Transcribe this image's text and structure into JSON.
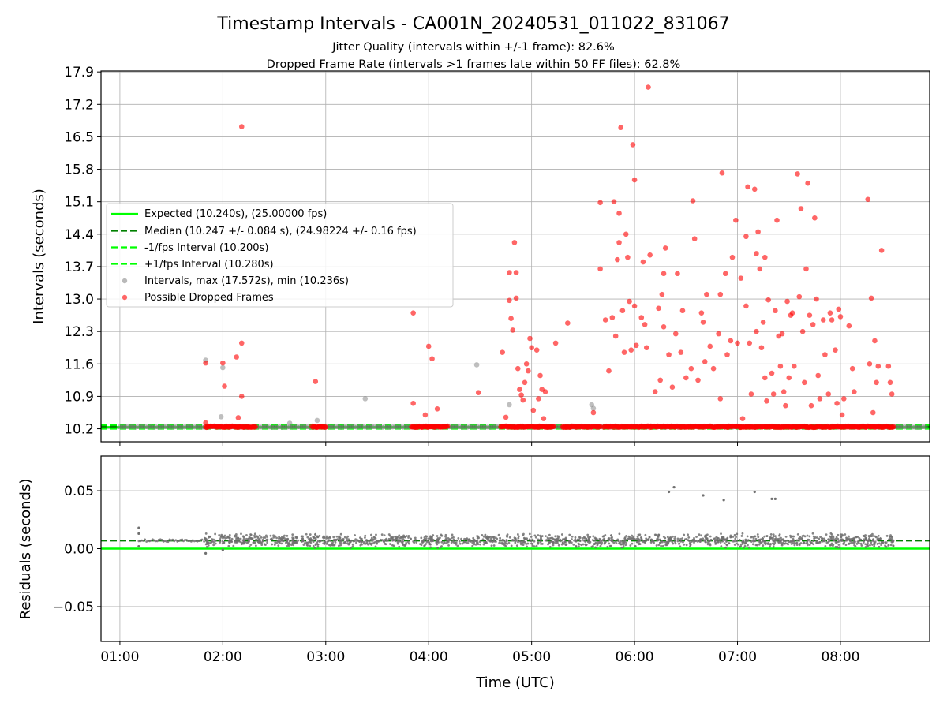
{
  "chart_data": [
    {
      "type": "scatter",
      "title": "Timestamp Intervals - CA001N_20240531_011022_831067",
      "subtitle_1": "Jitter Quality (intervals within +/-1 frame): 82.6%",
      "subtitle_2": "Dropped Frame Rate (intervals >1 frames late within 50 FF files): 62.8%",
      "ylabel": "Intervals (seconds)",
      "ylim": [
        9.92,
        17.92
      ],
      "yticks": [
        "10.2",
        "10.9",
        "11.6",
        "12.3",
        "13.0",
        "13.7",
        "14.4",
        "15.1",
        "15.8",
        "16.5",
        "17.2",
        "17.9"
      ],
      "grid": true,
      "legend_position": "center-left",
      "lines": {
        "expected": {
          "y": 10.24,
          "label": "Expected (10.240s), (25.00000 fps)",
          "color": "#00ff00"
        },
        "median": {
          "y": 10.247,
          "label": "Median (10.247 +/- 0.084 s), (24.98224 +/- 0.16 fps)",
          "color": "#008000"
        },
        "minus_fps": {
          "y": 10.2,
          "label": "-1/fps Interval (10.200s)",
          "color": "#00ff00"
        },
        "plus_fps": {
          "y": 10.28,
          "label": "+1/fps Interval (10.280s)",
          "color": "#00ff00"
        }
      },
      "intervals_series": {
        "label": "Intervals, max (17.572s), min (10.236s)",
        "color": "#808080",
        "points": [
          [
            "01:50",
            11.68
          ],
          [
            "01:59",
            10.46
          ],
          [
            "02:00",
            11.52
          ],
          [
            "02:39",
            10.32
          ],
          [
            "02:55",
            10.38
          ],
          [
            "03:23",
            10.85
          ],
          [
            "04:28",
            11.58
          ],
          [
            "04:47",
            10.72
          ],
          [
            "05:35",
            10.72
          ],
          [
            "05:36",
            10.64
          ]
        ]
      },
      "dropped_series": {
        "label": "Possible Dropped Frames",
        "color": "#ff0000",
        "points": [
          [
            "01:50",
            11.62
          ],
          [
            "01:50",
            10.33
          ],
          [
            "02:00",
            11.62
          ],
          [
            "02:01",
            11.12
          ],
          [
            "02:08",
            11.75
          ],
          [
            "02:09",
            10.44
          ],
          [
            "02:11",
            10.9
          ],
          [
            "02:11",
            16.72
          ],
          [
            "02:11",
            12.05
          ],
          [
            "02:54",
            11.22
          ],
          [
            "03:51",
            12.7
          ],
          [
            "03:51",
            10.75
          ],
          [
            "03:58",
            10.5
          ],
          [
            "04:00",
            11.98
          ],
          [
            "04:02",
            11.71
          ],
          [
            "04:05",
            10.63
          ],
          [
            "04:29",
            10.98
          ],
          [
            "04:43",
            11.85
          ],
          [
            "04:45",
            10.45
          ],
          [
            "04:47",
            12.97
          ],
          [
            "04:47",
            13.57
          ],
          [
            "04:48",
            12.58
          ],
          [
            "04:49",
            12.33
          ],
          [
            "04:50",
            14.22
          ],
          [
            "04:51",
            13.02
          ],
          [
            "04:51",
            13.57
          ],
          [
            "04:52",
            11.5
          ],
          [
            "04:53",
            11.05
          ],
          [
            "04:54",
            10.93
          ],
          [
            "04:55",
            10.82
          ],
          [
            "04:56",
            11.2
          ],
          [
            "04:57",
            11.6
          ],
          [
            "04:58",
            11.45
          ],
          [
            "04:59",
            12.15
          ],
          [
            "05:00",
            11.95
          ],
          [
            "05:01",
            10.6
          ],
          [
            "05:03",
            11.9
          ],
          [
            "05:04",
            10.85
          ],
          [
            "05:05",
            11.35
          ],
          [
            "05:06",
            11.05
          ],
          [
            "05:07",
            10.42
          ],
          [
            "05:08",
            11.0
          ],
          [
            "05:14",
            12.05
          ],
          [
            "05:21",
            12.48
          ],
          [
            "05:36",
            10.55
          ],
          [
            "05:40",
            15.08
          ],
          [
            "05:40",
            13.65
          ],
          [
            "05:43",
            12.55
          ],
          [
            "05:45",
            11.45
          ],
          [
            "05:47",
            12.6
          ],
          [
            "05:48",
            15.1
          ],
          [
            "05:49",
            12.2
          ],
          [
            "05:50",
            13.85
          ],
          [
            "05:51",
            14.85
          ],
          [
            "05:51",
            14.22
          ],
          [
            "05:52",
            16.7
          ],
          [
            "05:53",
            12.75
          ],
          [
            "05:54",
            11.85
          ],
          [
            "05:55",
            14.4
          ],
          [
            "05:56",
            13.9
          ],
          [
            "05:57",
            12.95
          ],
          [
            "05:58",
            11.9
          ],
          [
            "05:59",
            16.33
          ],
          [
            "06:00",
            15.57
          ],
          [
            "06:00",
            12.85
          ],
          [
            "06:01",
            12.0
          ],
          [
            "06:04",
            12.6
          ],
          [
            "06:05",
            13.8
          ],
          [
            "06:06",
            12.45
          ],
          [
            "06:07",
            11.95
          ],
          [
            "06:08",
            17.57
          ],
          [
            "06:09",
            13.95
          ],
          [
            "06:12",
            11.0
          ],
          [
            "06:14",
            12.8
          ],
          [
            "06:15",
            11.25
          ],
          [
            "06:16",
            13.1
          ],
          [
            "06:17",
            13.55
          ],
          [
            "06:17",
            12.4
          ],
          [
            "06:18",
            14.1
          ],
          [
            "06:20",
            11.8
          ],
          [
            "06:22",
            11.1
          ],
          [
            "06:24",
            12.25
          ],
          [
            "06:25",
            13.55
          ],
          [
            "06:27",
            11.85
          ],
          [
            "06:28",
            12.75
          ],
          [
            "06:30",
            11.3
          ],
          [
            "06:33",
            11.5
          ],
          [
            "06:34",
            15.12
          ],
          [
            "06:35",
            14.3
          ],
          [
            "06:37",
            11.25
          ],
          [
            "06:39",
            12.7
          ],
          [
            "06:40",
            12.5
          ],
          [
            "06:41",
            11.65
          ],
          [
            "06:42",
            13.1
          ],
          [
            "06:44",
            11.98
          ],
          [
            "06:46",
            11.5
          ],
          [
            "06:49",
            12.25
          ],
          [
            "06:50",
            10.85
          ],
          [
            "06:50",
            13.1
          ],
          [
            "06:51",
            15.72
          ],
          [
            "06:53",
            13.55
          ],
          [
            "06:54",
            11.8
          ],
          [
            "06:56",
            12.1
          ],
          [
            "06:57",
            13.9
          ],
          [
            "06:59",
            14.7
          ],
          [
            "07:00",
            12.05
          ],
          [
            "07:02",
            13.45
          ],
          [
            "07:03",
            10.42
          ],
          [
            "07:05",
            12.85
          ],
          [
            "07:05",
            14.35
          ],
          [
            "07:06",
            15.42
          ],
          [
            "07:07",
            12.05
          ],
          [
            "07:08",
            10.95
          ],
          [
            "07:10",
            15.37
          ],
          [
            "07:11",
            13.98
          ],
          [
            "07:11",
            12.3
          ],
          [
            "07:12",
            14.45
          ],
          [
            "07:13",
            13.65
          ],
          [
            "07:14",
            11.95
          ],
          [
            "07:15",
            12.5
          ],
          [
            "07:16",
            13.9
          ],
          [
            "07:16",
            11.3
          ],
          [
            "07:17",
            10.8
          ],
          [
            "07:18",
            12.98
          ],
          [
            "07:20",
            11.4
          ],
          [
            "07:21",
            10.95
          ],
          [
            "07:22",
            12.75
          ],
          [
            "07:23",
            14.7
          ],
          [
            "07:24",
            12.2
          ],
          [
            "07:25",
            11.55
          ],
          [
            "07:26",
            12.25
          ],
          [
            "07:27",
            11.0
          ],
          [
            "07:28",
            10.7
          ],
          [
            "07:29",
            12.95
          ],
          [
            "07:30",
            11.3
          ],
          [
            "07:31",
            12.65
          ],
          [
            "07:32",
            12.7
          ],
          [
            "07:33",
            11.55
          ],
          [
            "07:35",
            15.7
          ],
          [
            "07:36",
            13.05
          ],
          [
            "07:37",
            14.95
          ],
          [
            "07:38",
            12.3
          ],
          [
            "07:39",
            11.2
          ],
          [
            "07:40",
            13.65
          ],
          [
            "07:41",
            15.5
          ],
          [
            "07:42",
            12.65
          ],
          [
            "07:43",
            10.7
          ],
          [
            "07:44",
            12.45
          ],
          [
            "07:45",
            14.75
          ],
          [
            "07:46",
            13.0
          ],
          [
            "07:47",
            11.35
          ],
          [
            "07:48",
            10.85
          ],
          [
            "07:50",
            12.55
          ],
          [
            "07:51",
            11.8
          ],
          [
            "07:53",
            10.95
          ],
          [
            "07:54",
            12.7
          ],
          [
            "07:55",
            12.55
          ],
          [
            "07:57",
            11.9
          ],
          [
            "07:58",
            10.75
          ],
          [
            "07:59",
            12.78
          ],
          [
            "08:00",
            12.62
          ],
          [
            "08:01",
            10.5
          ],
          [
            "08:02",
            10.85
          ],
          [
            "08:05",
            12.42
          ],
          [
            "08:07",
            11.5
          ],
          [
            "08:08",
            11.0
          ],
          [
            "08:16",
            15.15
          ],
          [
            "08:17",
            11.6
          ],
          [
            "08:18",
            13.02
          ],
          [
            "08:19",
            10.55
          ],
          [
            "08:20",
            12.1
          ],
          [
            "08:21",
            11.2
          ],
          [
            "08:22",
            11.55
          ],
          [
            "08:24",
            14.05
          ],
          [
            "08:28",
            11.55
          ],
          [
            "08:29",
            11.2
          ],
          [
            "08:30",
            10.95
          ]
        ],
        "baseline_segments": [
          [
            "01:50",
            "02:19"
          ],
          [
            "02:52",
            "03:00"
          ],
          [
            "03:50",
            "04:11"
          ],
          [
            "04:42",
            "05:13"
          ],
          [
            "05:18",
            "05:40"
          ],
          [
            "05:42",
            "06:50"
          ],
          [
            "06:51",
            "07:12"
          ],
          [
            "07:13",
            "08:31"
          ]
        ]
      }
    },
    {
      "type": "scatter",
      "ylabel": "Residuals (seconds)",
      "xlabel": "Time (UTC)",
      "ylim": [
        -0.08,
        0.08
      ],
      "yticks": [
        "−0.05",
        "0.00",
        "0.05"
      ],
      "xticks": [
        "01:00",
        "02:00",
        "03:00",
        "04:00",
        "05:00",
        "06:00",
        "07:00",
        "08:00"
      ],
      "xlim": [
        "00:49",
        "08:52"
      ],
      "grid": true,
      "zero_line": {
        "y": 0.0,
        "color": "#00ff00"
      },
      "median_line": {
        "y": 0.007,
        "color": "#008000"
      },
      "points_color": "#707070",
      "outliers": [
        [
          "01:11",
          0.018
        ],
        [
          "01:11",
          0.013
        ],
        [
          "01:11",
          0.002
        ],
        [
          "01:50",
          -0.004
        ],
        [
          "02:00",
          -0.001
        ],
        [
          "06:20",
          0.049
        ],
        [
          "06:23",
          0.053
        ],
        [
          "06:40",
          0.046
        ],
        [
          "06:52",
          0.042
        ],
        [
          "07:10",
          0.049
        ],
        [
          "07:20",
          0.043
        ],
        [
          "07:22",
          0.043
        ]
      ],
      "band": {
        "start": "01:49",
        "end": "08:31",
        "mean": 0.007,
        "spread": 0.005,
        "count": 1500
      }
    }
  ],
  "legend": {
    "expected": "Expected (10.240s), (25.00000 fps)",
    "median": "Median (10.247 +/- 0.084 s), (24.98224 +/- 0.16 fps)",
    "minus_fps": "-1/fps Interval (10.200s)",
    "plus_fps": "+1/fps Interval (10.280s)",
    "intervals": "Intervals, max (17.572s), min (10.236s)",
    "dropped": "Possible Dropped Frames"
  }
}
